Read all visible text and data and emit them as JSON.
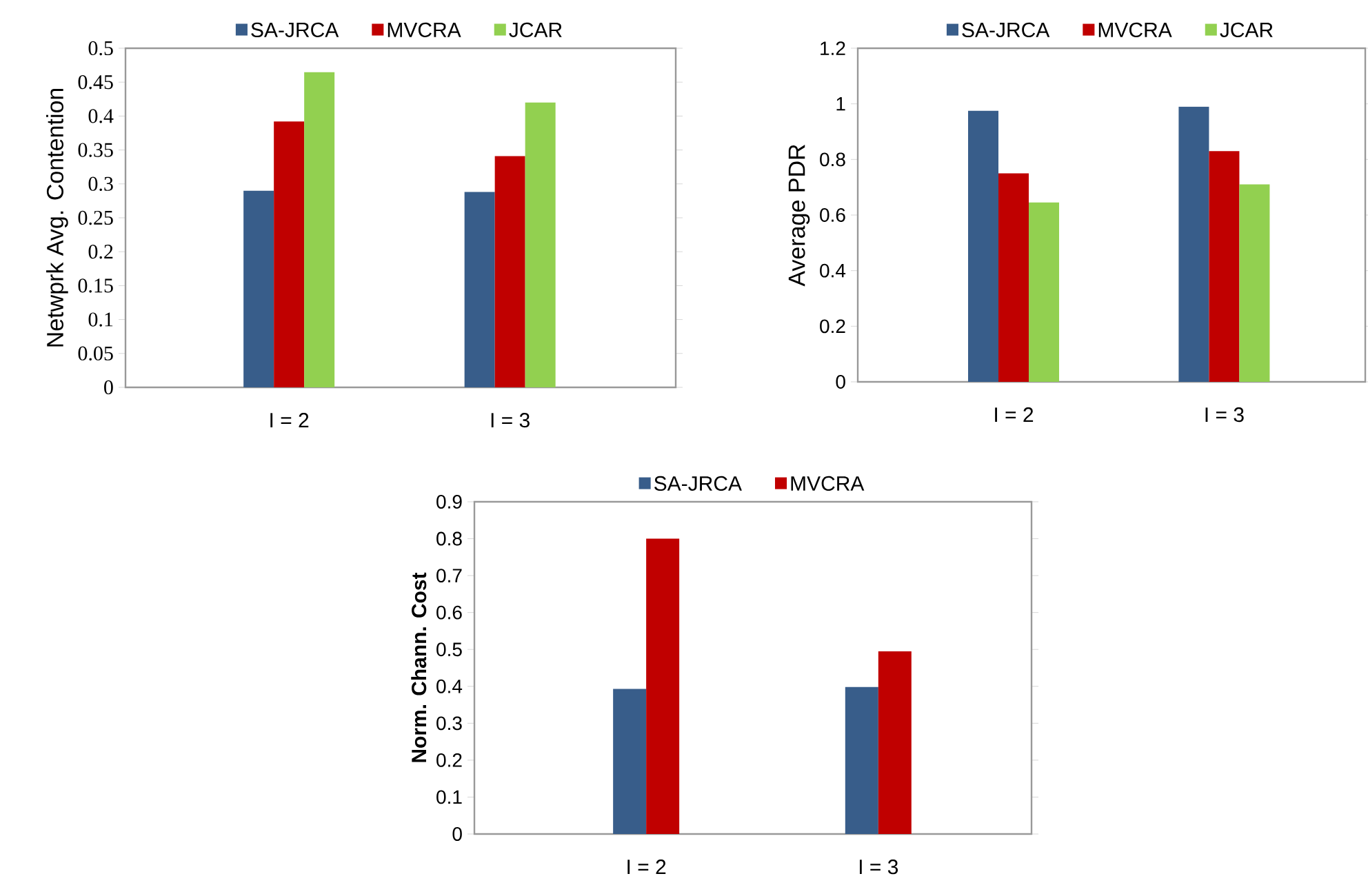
{
  "chart_data": [
    {
      "type": "bar",
      "categories": [
        "I = 2",
        "I = 3"
      ],
      "ylabel": "Netwprk Avg. Contention",
      "legend": "top",
      "series": [
        {
          "name": "SA-JRCA",
          "color": "#385d8a",
          "values": [
            0.29,
            0.288
          ]
        },
        {
          "name": "MVCRA",
          "color": "#c00000",
          "values": [
            0.392,
            0.341
          ]
        },
        {
          "name": "JCAR",
          "color": "#92d050",
          "values": [
            0.465,
            0.42
          ]
        }
      ],
      "ylim": [
        0,
        0.5
      ],
      "yticks": [
        0,
        0.05,
        0.1,
        0.15,
        0.2,
        0.25,
        0.3,
        0.35,
        0.4,
        0.45,
        0.5
      ]
    },
    {
      "type": "bar",
      "categories": [
        "I = 2",
        "I = 3"
      ],
      "ylabel": "Average PDR",
      "legend": "top",
      "series": [
        {
          "name": "SA-JRCA",
          "color": "#385d8a",
          "values": [
            0.975,
            0.99
          ]
        },
        {
          "name": "MVCRA",
          "color": "#c00000",
          "values": [
            0.75,
            0.83
          ]
        },
        {
          "name": "JCAR",
          "color": "#92d050",
          "values": [
            0.645,
            0.71
          ]
        }
      ],
      "ylim": [
        0,
        1.2
      ],
      "yticks": [
        0,
        0.2,
        0.4,
        0.6,
        0.8,
        1,
        1.2
      ]
    },
    {
      "type": "bar",
      "categories": [
        "I = 2",
        "I = 3"
      ],
      "ylabel": "Norm. Chann. Cost",
      "legend": "top",
      "series": [
        {
          "name": "SA-JRCA",
          "color": "#385d8a",
          "values": [
            0.393,
            0.398
          ]
        },
        {
          "name": "MVCRA",
          "color": "#c00000",
          "values": [
            0.8,
            0.495
          ]
        }
      ],
      "ylim": [
        0,
        0.9
      ],
      "yticks": [
        0,
        0.1,
        0.2,
        0.3,
        0.4,
        0.5,
        0.6,
        0.7,
        0.8,
        0.9
      ]
    }
  ]
}
